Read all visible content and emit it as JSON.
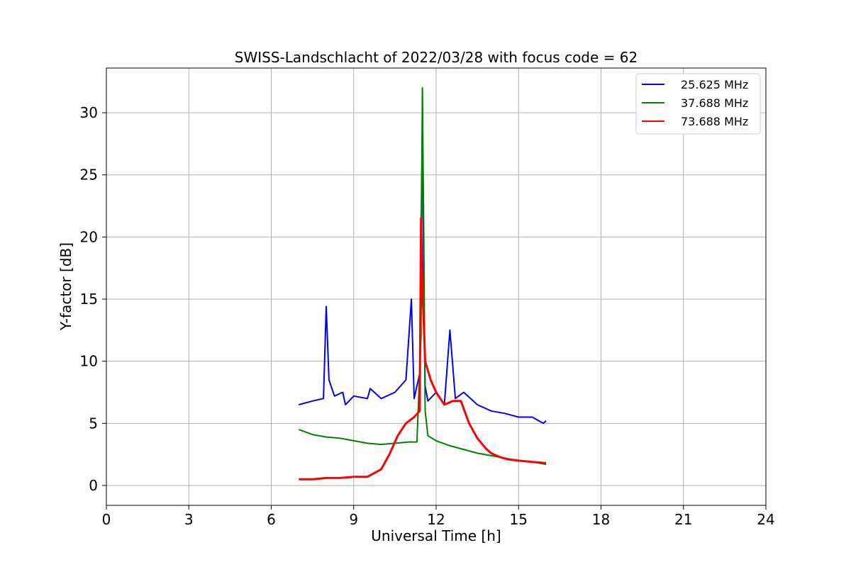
{
  "chart_data": {
    "type": "line",
    "title": "SWISS-Landschlacht of 2022/03/28 with focus code = 62",
    "xlabel": "Universal Time [h]",
    "ylabel": "Y-factor [dB]",
    "xlim": [
      0,
      24
    ],
    "ylim": [
      -1.6,
      33.6
    ],
    "xticks": [
      0,
      3,
      6,
      9,
      12,
      15,
      18,
      21,
      24
    ],
    "yticks": [
      0,
      5,
      10,
      15,
      20,
      25,
      30
    ],
    "grid": true,
    "legend_position": "top-right",
    "series": [
      {
        "name": "25.625 MHz",
        "color": "#0000ff",
        "x": [
          7.0,
          7.5,
          7.9,
          8.0,
          8.1,
          8.3,
          8.6,
          8.7,
          9.0,
          9.5,
          9.6,
          10.0,
          10.5,
          10.9,
          11.1,
          11.2,
          11.4,
          11.5,
          11.55,
          11.6,
          11.7,
          12.0,
          12.3,
          12.5,
          12.7,
          13.0,
          13.5,
          14.0,
          14.5,
          15.0,
          15.5,
          15.9,
          16.0
        ],
        "y": [
          6.5,
          6.8,
          7.0,
          14.4,
          8.5,
          7.2,
          7.5,
          6.5,
          7.2,
          7.0,
          7.8,
          7.0,
          7.5,
          8.5,
          15.0,
          7.0,
          9.0,
          30.0,
          16.0,
          8.0,
          6.8,
          7.5,
          6.5,
          12.5,
          7.0,
          7.5,
          6.5,
          6.0,
          5.8,
          5.5,
          5.5,
          5.0,
          5.2
        ]
      },
      {
        "name": "37.688 MHz",
        "color": "#008000",
        "x": [
          7.0,
          7.5,
          8.0,
          8.5,
          9.0,
          9.5,
          10.0,
          10.5,
          11.0,
          11.3,
          11.45,
          11.5,
          11.55,
          11.6,
          11.7,
          12.0,
          12.5,
          13.0,
          13.5,
          14.0,
          14.5,
          15.0,
          15.5,
          16.0
        ],
        "y": [
          4.5,
          4.1,
          3.9,
          3.8,
          3.6,
          3.4,
          3.3,
          3.4,
          3.5,
          3.5,
          12.0,
          32.0,
          20.0,
          6.0,
          4.0,
          3.6,
          3.2,
          2.9,
          2.6,
          2.4,
          2.2,
          2.0,
          1.9,
          1.7
        ]
      },
      {
        "name": "73.688 MHz",
        "color": "#ff0000",
        "x": [
          7.0,
          7.5,
          8.0,
          8.5,
          9.0,
          9.5,
          10.0,
          10.3,
          10.6,
          10.9,
          11.2,
          11.4,
          11.45,
          11.5,
          11.6,
          11.8,
          12.0,
          12.3,
          12.6,
          12.9,
          13.2,
          13.5,
          13.8,
          14.0,
          14.3,
          14.6,
          15.0,
          15.5,
          16.0
        ],
        "y": [
          0.5,
          0.5,
          0.6,
          0.6,
          0.7,
          0.7,
          1.3,
          2.5,
          4.0,
          5.0,
          5.5,
          6.0,
          21.5,
          16.0,
          10.0,
          8.5,
          7.5,
          6.5,
          6.8,
          6.8,
          5.0,
          3.8,
          3.0,
          2.6,
          2.3,
          2.1,
          2.0,
          1.9,
          1.8
        ]
      }
    ]
  }
}
